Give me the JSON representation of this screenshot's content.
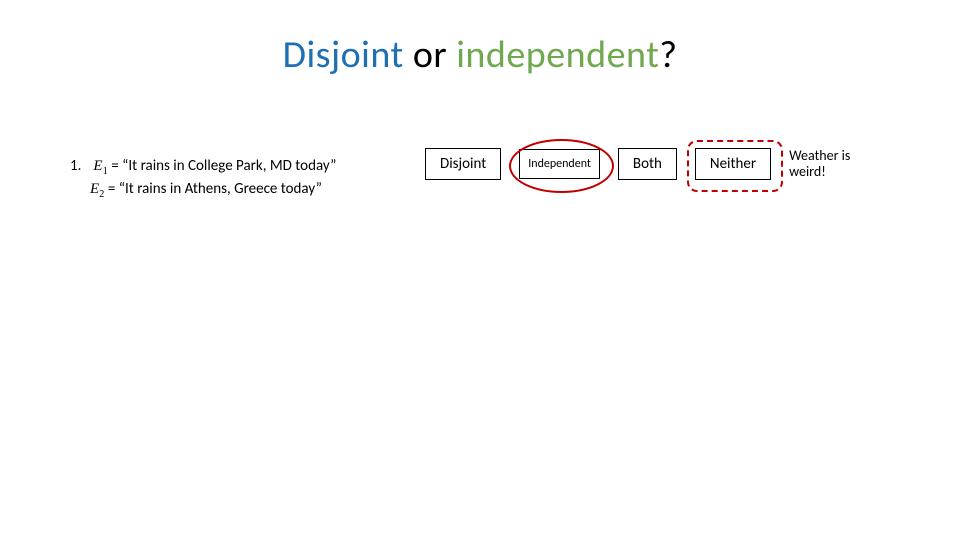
{
  "title": {
    "words": [
      {
        "text": "Disjoint",
        "color": "#1f6fb3"
      },
      {
        "text": " or ",
        "color": "#000000"
      },
      {
        "text": "independent",
        "color": "#6fa84f"
      },
      {
        "text": "?",
        "color": "#000000"
      }
    ],
    "fontsize": 38
  },
  "bullet": {
    "number": "1.",
    "var1": "E",
    "sub1": "1",
    "eq": "=",
    "quote_open": "“",
    "quote_close": "”",
    "text1": "It rains in College Park, MD today",
    "var2": "E",
    "sub2": "2",
    "text2": "It rains in Athens, Greece today"
  },
  "options": {
    "disjoint": {
      "label": "Disjoint",
      "border_color": "#000000"
    },
    "independent": {
      "label": "Independent",
      "border_color": "#000000"
    },
    "both": {
      "label": "Both",
      "border_color": "#000000"
    },
    "neither": {
      "label": "Neither",
      "border_color": "#000000"
    }
  },
  "note_lines": [
    "Weather is",
    "weird!"
  ],
  "highlight": {
    "solid_on": "independent",
    "dashed_on": "neither",
    "ring_color": "#c00000"
  }
}
